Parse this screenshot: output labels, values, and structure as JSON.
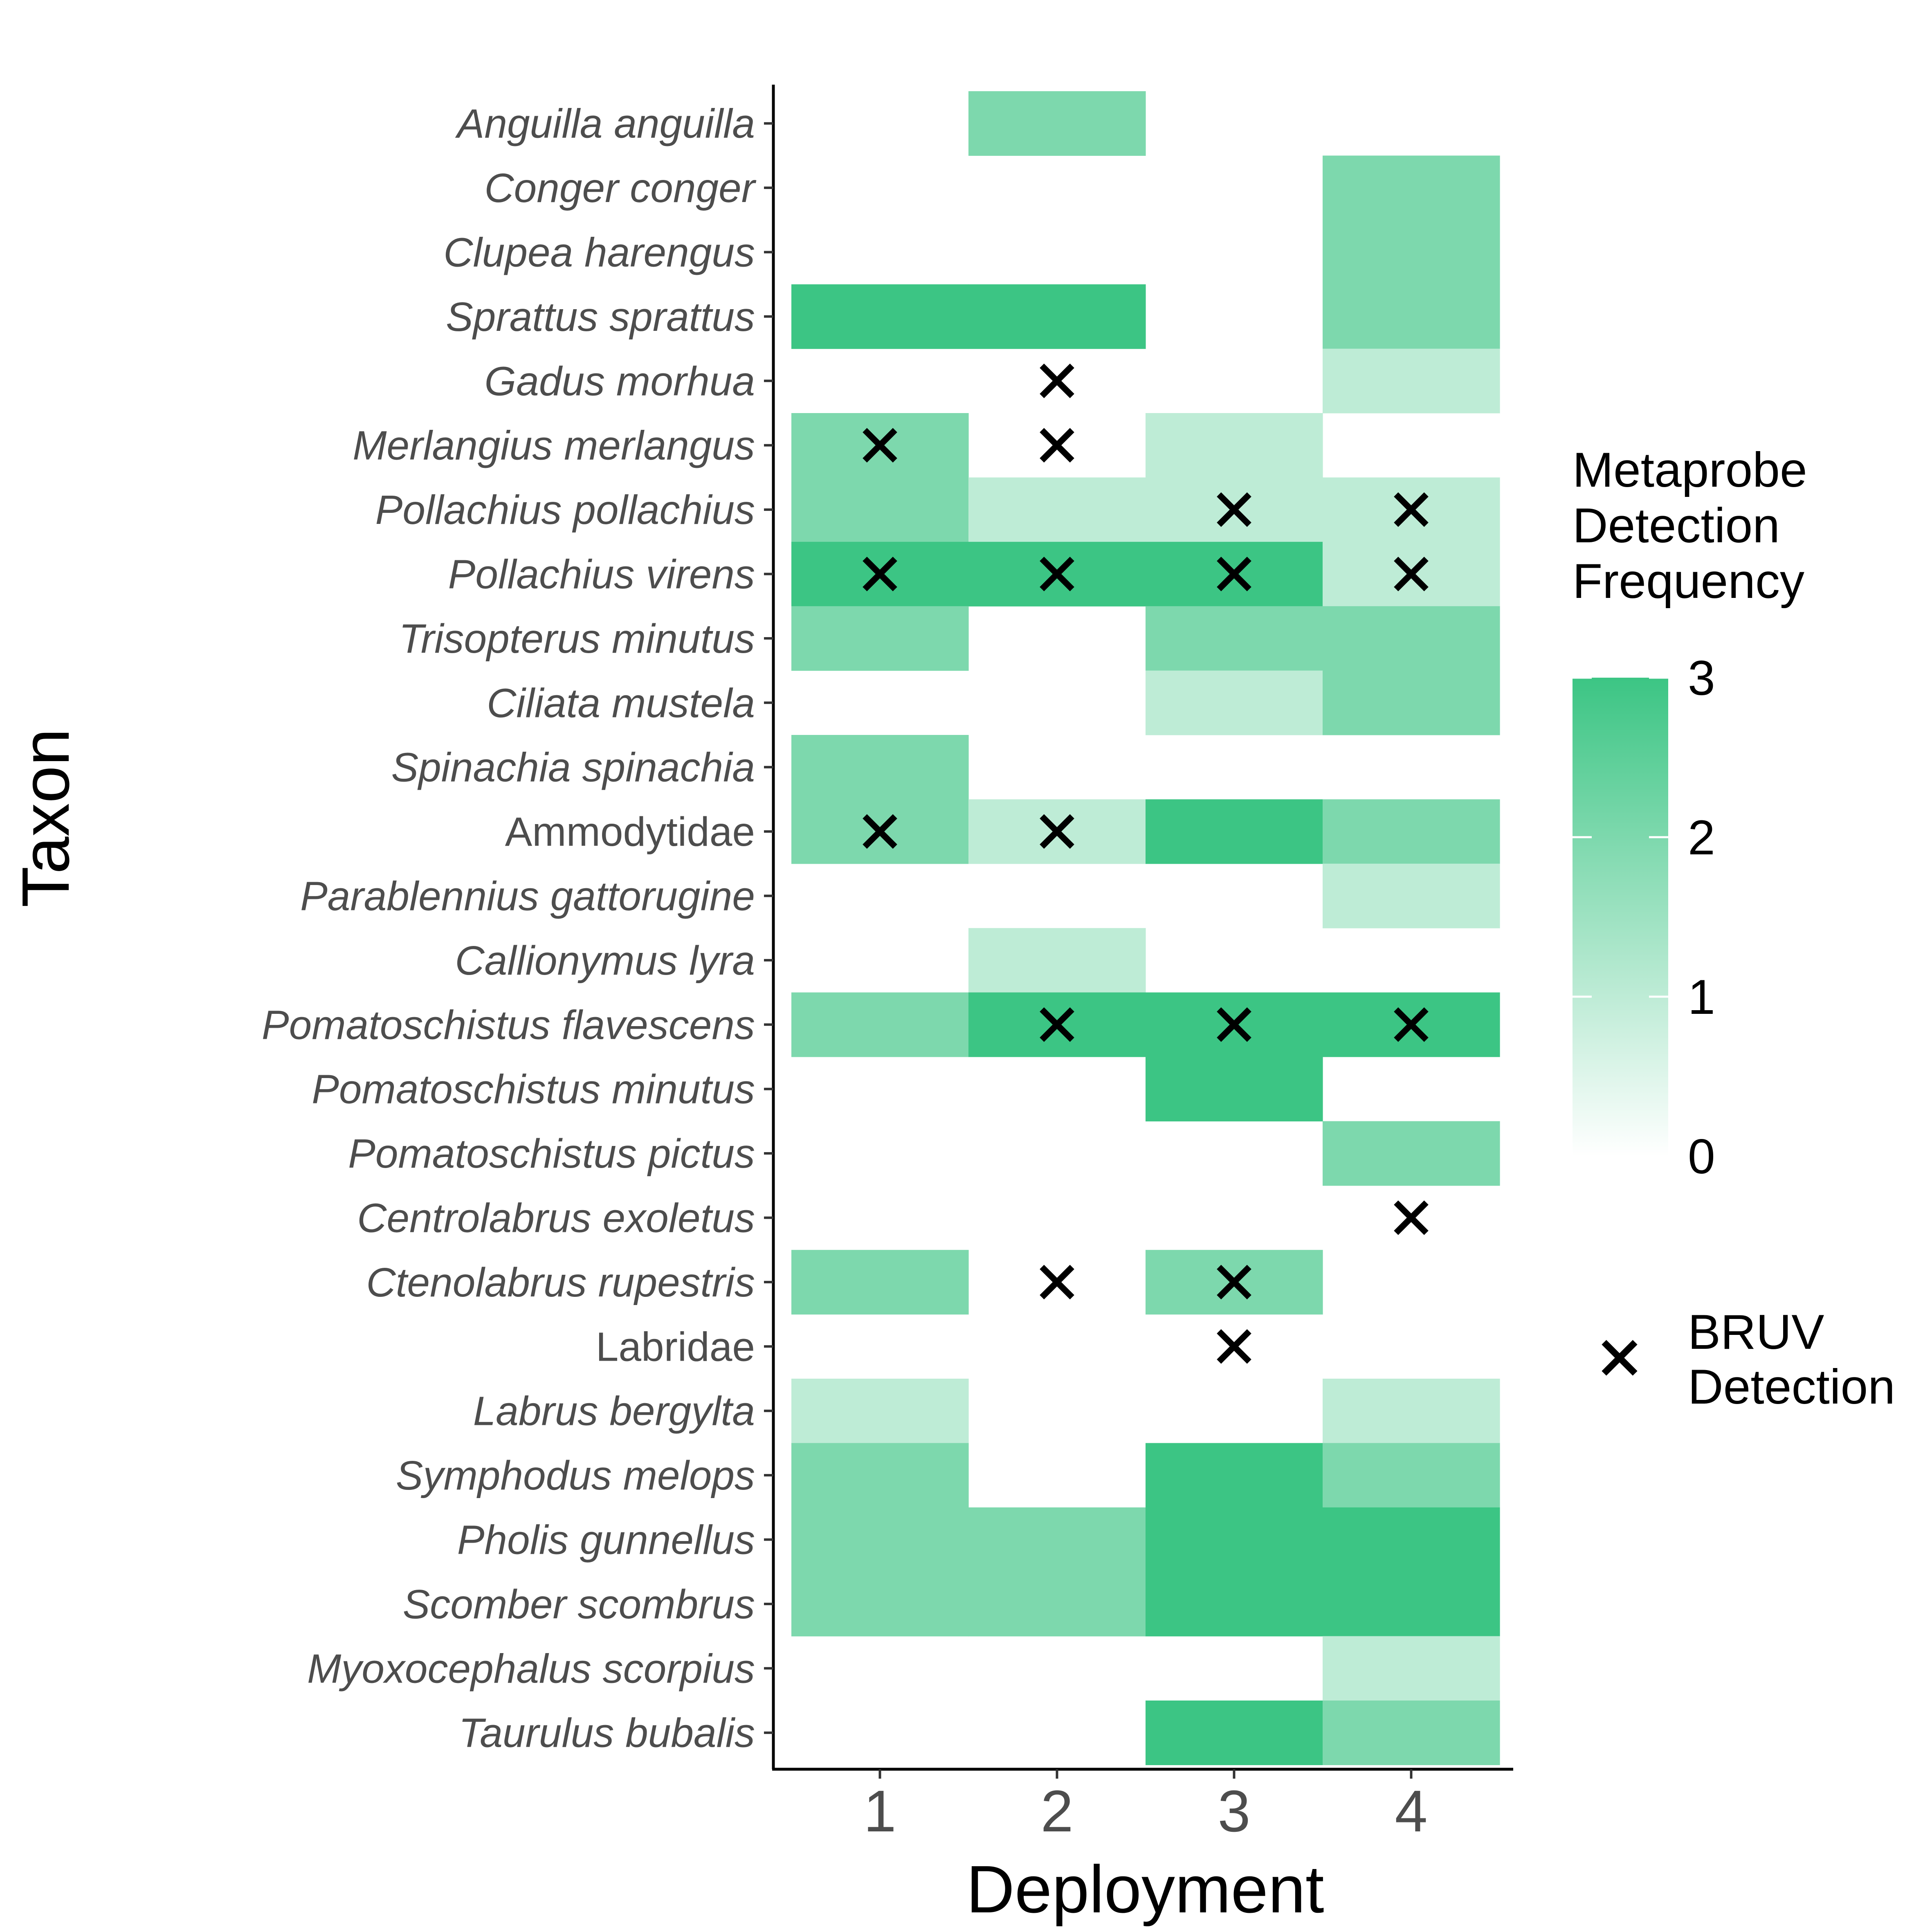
{
  "chart_data": {
    "type": "heatmap",
    "xlabel": "Deployment",
    "ylabel": "Taxon",
    "x_categories": [
      "1",
      "2",
      "3",
      "4"
    ],
    "taxa": [
      {
        "name": "Anguilla anguilla",
        "italic": true
      },
      {
        "name": "Conger conger",
        "italic": true
      },
      {
        "name": "Clupea harengus",
        "italic": true
      },
      {
        "name": "Sprattus sprattus",
        "italic": true
      },
      {
        "name": "Gadus morhua",
        "italic": true
      },
      {
        "name": "Merlangius merlangus",
        "italic": true
      },
      {
        "name": "Pollachius pollachius",
        "italic": true
      },
      {
        "name": "Pollachius virens",
        "italic": true
      },
      {
        "name": "Trisopterus minutus",
        "italic": true
      },
      {
        "name": "Ciliata mustela",
        "italic": true
      },
      {
        "name": "Spinachia spinachia",
        "italic": true
      },
      {
        "name": "Ammodytidae",
        "italic": false
      },
      {
        "name": "Parablennius gattorugine",
        "italic": true
      },
      {
        "name": "Callionymus lyra",
        "italic": true
      },
      {
        "name": "Pomatoschistus flavescens",
        "italic": true
      },
      {
        "name": "Pomatoschistus minutus",
        "italic": true
      },
      {
        "name": "Pomatoschistus pictus",
        "italic": true
      },
      {
        "name": "Centrolabrus exoletus",
        "italic": true
      },
      {
        "name": "Ctenolabrus rupestris",
        "italic": true
      },
      {
        "name": "Labridae",
        "italic": false
      },
      {
        "name": "Labrus bergylta",
        "italic": true
      },
      {
        "name": "Symphodus melops",
        "italic": true
      },
      {
        "name": "Pholis gunnellus",
        "italic": true
      },
      {
        "name": "Scomber scombrus",
        "italic": true
      },
      {
        "name": "Myoxocephalus scorpius",
        "italic": true
      },
      {
        "name": "Taurulus bubalis",
        "italic": true
      }
    ],
    "metaprobe_frequency": [
      [
        0,
        2,
        0,
        0
      ],
      [
        0,
        0,
        0,
        2
      ],
      [
        0,
        0,
        0,
        2
      ],
      [
        3,
        3,
        0,
        2
      ],
      [
        0,
        0,
        0,
        1
      ],
      [
        2,
        0,
        1,
        0
      ],
      [
        2,
        1,
        1,
        1
      ],
      [
        3,
        3,
        3,
        1
      ],
      [
        2,
        0,
        2,
        2
      ],
      [
        0,
        0,
        1,
        2
      ],
      [
        2,
        0,
        0,
        0
      ],
      [
        2,
        1,
        3,
        2
      ],
      [
        0,
        0,
        0,
        1
      ],
      [
        0,
        1,
        0,
        0
      ],
      [
        2,
        3,
        3,
        3
      ],
      [
        0,
        0,
        3,
        0
      ],
      [
        0,
        0,
        0,
        2
      ],
      [
        0,
        0,
        0,
        0
      ],
      [
        2,
        0,
        2,
        0
      ],
      [
        0,
        0,
        0,
        0
      ],
      [
        1,
        0,
        0,
        1
      ],
      [
        2,
        0,
        3,
        2
      ],
      [
        2,
        2,
        3,
        3
      ],
      [
        2,
        2,
        3,
        3
      ],
      [
        0,
        0,
        0,
        1
      ],
      [
        0,
        0,
        3,
        2
      ]
    ],
    "bruv_detections": [
      {
        "taxon": "Gadus morhua",
        "deployment": "2"
      },
      {
        "taxon": "Merlangius merlangus",
        "deployment": "1"
      },
      {
        "taxon": "Merlangius merlangus",
        "deployment": "2"
      },
      {
        "taxon": "Pollachius pollachius",
        "deployment": "3"
      },
      {
        "taxon": "Pollachius pollachius",
        "deployment": "4"
      },
      {
        "taxon": "Pollachius virens",
        "deployment": "1"
      },
      {
        "taxon": "Pollachius virens",
        "deployment": "2"
      },
      {
        "taxon": "Pollachius virens",
        "deployment": "3"
      },
      {
        "taxon": "Pollachius virens",
        "deployment": "4"
      },
      {
        "taxon": "Ammodytidae",
        "deployment": "1"
      },
      {
        "taxon": "Ammodytidae",
        "deployment": "2"
      },
      {
        "taxon": "Pomatoschistus flavescens",
        "deployment": "2"
      },
      {
        "taxon": "Pomatoschistus flavescens",
        "deployment": "3"
      },
      {
        "taxon": "Pomatoschistus flavescens",
        "deployment": "4"
      },
      {
        "taxon": "Centrolabrus exoletus",
        "deployment": "4"
      },
      {
        "taxon": "Ctenolabrus rupestris",
        "deployment": "2"
      },
      {
        "taxon": "Ctenolabrus rupestris",
        "deployment": "3"
      },
      {
        "taxon": "Labridae",
        "deployment": "3"
      }
    ],
    "legend": {
      "fill_title": [
        "Metaprobe",
        "Detection",
        "Frequency"
      ],
      "fill_range": [
        0,
        3
      ],
      "fill_ticks": [
        "0",
        "1",
        "2",
        "3"
      ],
      "marker_label": [
        "BRUV",
        "Detection"
      ],
      "placement": "right"
    },
    "colors": {
      "low": "#ffffff",
      "high": "#3cc584",
      "marker": "#000000"
    },
    "grid": false
  }
}
